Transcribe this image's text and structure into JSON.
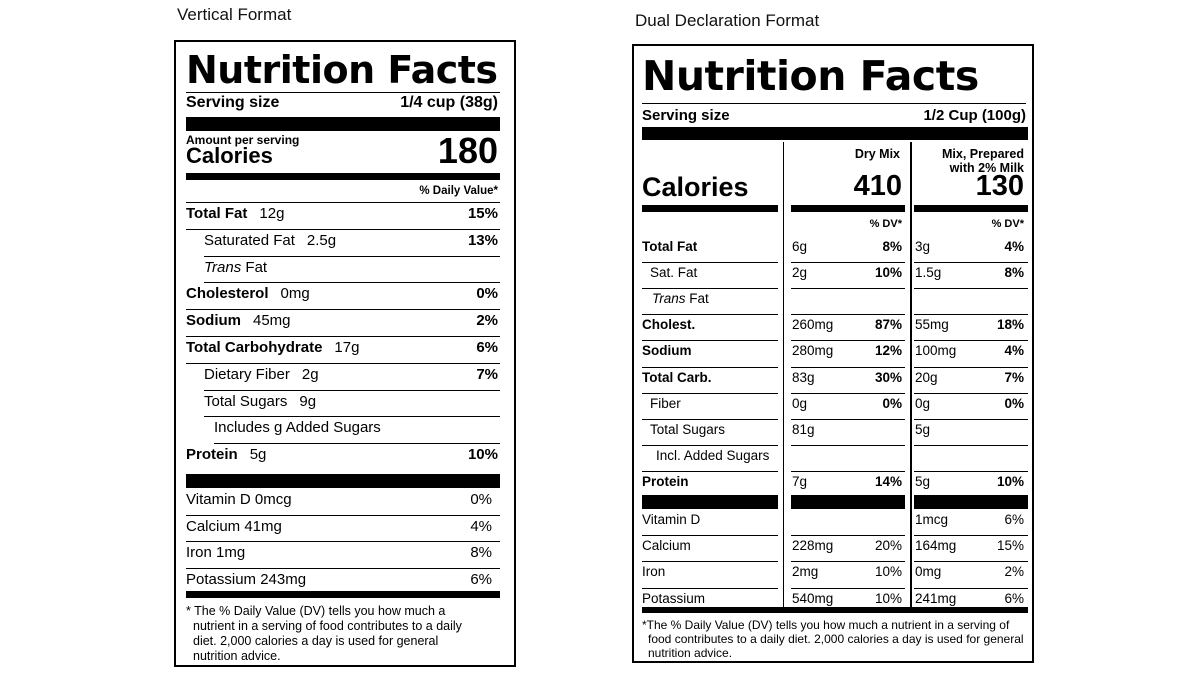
{
  "captions": {
    "left": "Vertical Format",
    "right": "Dual Declaration Format"
  },
  "vertical": {
    "title": "Nutrition Facts",
    "serving_label": "Serving size",
    "serving_value": "1/4 cup (38g)",
    "amount_per_serving": "Amount per serving",
    "calories_label": "Calories",
    "calories_value": "180",
    "dv_header": "% Daily Value*",
    "rows": [
      {
        "name": "Total Fat",
        "amount": "12g",
        "dv": "15%"
      },
      {
        "name": "Saturated Fat",
        "amount": "2.5g",
        "dv": "13%"
      },
      {
        "name": "Trans",
        "name_suffix": " Fat",
        "amount": "",
        "dv": ""
      },
      {
        "name": "Cholesterol",
        "amount": "0mg",
        "dv": "0%"
      },
      {
        "name": "Sodium",
        "amount": "45mg",
        "dv": "2%"
      },
      {
        "name": "Total Carbohydrate",
        "amount": "17g",
        "dv": "6%"
      },
      {
        "name": "Dietary Fiber",
        "amount": "2g",
        "dv": "7%"
      },
      {
        "name": "Total Sugars",
        "amount": "9g",
        "dv": ""
      },
      {
        "name": "Includes g Added Sugars",
        "amount": "",
        "dv": ""
      },
      {
        "name": "Protein",
        "amount": "5g",
        "dv": "10%"
      }
    ],
    "vitamins": [
      {
        "name": "Vitamin D 0mcg",
        "dv": "0%"
      },
      {
        "name": "Calcium 41mg",
        "dv": "4%"
      },
      {
        "name": "Iron 1mg",
        "dv": "8%"
      },
      {
        "name": "Potassium 243mg",
        "dv": "6%"
      }
    ],
    "footnote": [
      "* The % Daily Value (DV) tells you how much a",
      "nutrient in a serving of food contributes to a daily",
      "diet. 2,000 calories a day is used for general",
      "nutrition advice."
    ]
  },
  "dual": {
    "title": "Nutrition Facts",
    "serving_label": "Serving size",
    "serving_value": "1/2 Cup (100g)",
    "col1_header": "Dry Mix",
    "col2_header_line1": "Mix, Prepared",
    "col2_header_line2": "with 2% Milk",
    "calories_label": "Calories",
    "calories_col1": "410",
    "calories_col2": "130",
    "dv_header": "% DV*",
    "rows": [
      {
        "name": "Total Fat",
        "a1": "6g",
        "d1": "8%",
        "a2": "3g",
        "d2": "4%"
      },
      {
        "name": "Sat. Fat",
        "a1": "2g",
        "d1": "10%",
        "a2": "1.5g",
        "d2": "8%"
      },
      {
        "name": "Trans",
        "name_suffix": " Fat",
        "a1": "",
        "d1": "",
        "a2": "",
        "d2": ""
      },
      {
        "name": "Cholest.",
        "a1": "260mg",
        "d1": "87%",
        "a2": "55mg",
        "d2": "18%"
      },
      {
        "name": "Sodium",
        "a1": "280mg",
        "d1": "12%",
        "a2": "100mg",
        "d2": "4%"
      },
      {
        "name": "Total Carb.",
        "a1": "83g",
        "d1": "30%",
        "a2": "20g",
        "d2": "7%"
      },
      {
        "name": "Fiber",
        "a1": "0g",
        "d1": "0%",
        "a2": "0g",
        "d2": "0%"
      },
      {
        "name": "Total Sugars",
        "a1": "81g",
        "d1": "",
        "a2": "5g",
        "d2": ""
      },
      {
        "name": "Incl. Added Sugars",
        "a1": "",
        "d1": "",
        "a2": "",
        "d2": ""
      },
      {
        "name": "Protein",
        "a1": "7g",
        "d1": "14%",
        "a2": "5g",
        "d2": "10%"
      }
    ],
    "vitamins": [
      {
        "name": "Vitamin D",
        "a1": "",
        "d1": "",
        "a2": "1mcg",
        "d2": "6%"
      },
      {
        "name": "Calcium",
        "a1": "228mg",
        "d1": "20%",
        "a2": "164mg",
        "d2": "15%"
      },
      {
        "name": "Iron",
        "a1": "2mg",
        "d1": "10%",
        "a2": "0mg",
        "d2": "2%"
      },
      {
        "name": "Potassium",
        "a1": "540mg",
        "d1": "10%",
        "a2": "241mg",
        "d2": "6%"
      }
    ],
    "footnote": [
      "*The % Daily Value (DV) tells you how much a nutrient in a serving of",
      "food contributes to a daily diet. 2,000 calories a day is used for general",
      "nutrition advice."
    ]
  }
}
